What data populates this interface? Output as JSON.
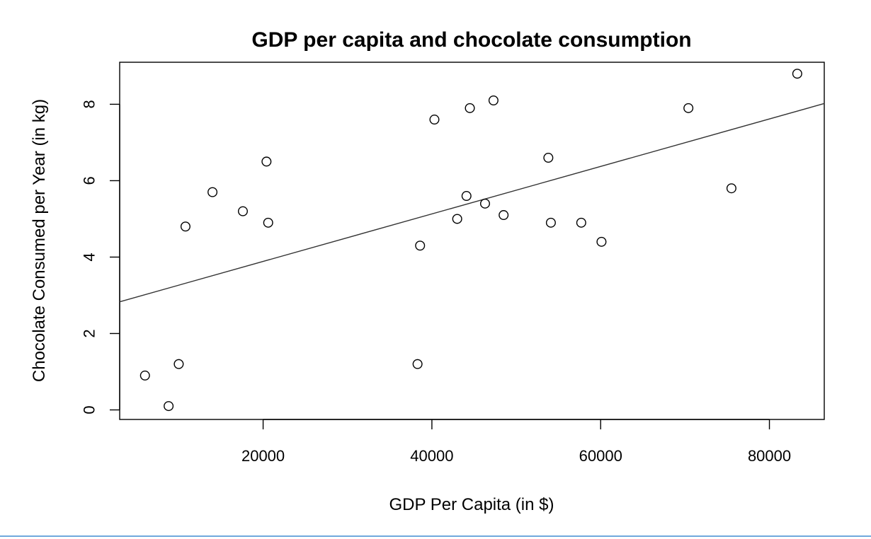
{
  "chart_data": {
    "type": "scatter",
    "title": "GDP per capita and chocolate consumption",
    "xlabel": "GDP Per Capita (in $)",
    "ylabel": "Chocolate Consumed per Year (in kg)",
    "xlim": [
      3000,
      86500
    ],
    "ylim": [
      -0.25,
      9.1
    ],
    "xticks": [
      20000,
      40000,
      60000,
      80000
    ],
    "yticks": [
      0,
      2,
      4,
      6,
      8
    ],
    "grid": false,
    "legend": "none",
    "points": [
      {
        "x": 6000,
        "y": 0.9
      },
      {
        "x": 8800,
        "y": 0.1
      },
      {
        "x": 10000,
        "y": 1.2
      },
      {
        "x": 10800,
        "y": 4.8
      },
      {
        "x": 14000,
        "y": 5.7
      },
      {
        "x": 17600,
        "y": 5.2
      },
      {
        "x": 20400,
        "y": 6.5
      },
      {
        "x": 20600,
        "y": 4.9
      },
      {
        "x": 38300,
        "y": 1.2
      },
      {
        "x": 38600,
        "y": 4.3
      },
      {
        "x": 40300,
        "y": 7.6
      },
      {
        "x": 43000,
        "y": 5.0
      },
      {
        "x": 44100,
        "y": 5.6
      },
      {
        "x": 44500,
        "y": 7.9
      },
      {
        "x": 46300,
        "y": 5.4
      },
      {
        "x": 47300,
        "y": 8.1
      },
      {
        "x": 48500,
        "y": 5.1
      },
      {
        "x": 53800,
        "y": 6.6
      },
      {
        "x": 54100,
        "y": 4.9
      },
      {
        "x": 57700,
        "y": 4.9
      },
      {
        "x": 60100,
        "y": 4.4
      },
      {
        "x": 70400,
        "y": 7.9
      },
      {
        "x": 75500,
        "y": 5.8
      },
      {
        "x": 83300,
        "y": 8.8
      }
    ],
    "trendline": {
      "x": [
        3000,
        86500
      ],
      "y": [
        2.83,
        8.02
      ]
    },
    "marker_style": "open-circle",
    "line_color": "#333333"
  }
}
